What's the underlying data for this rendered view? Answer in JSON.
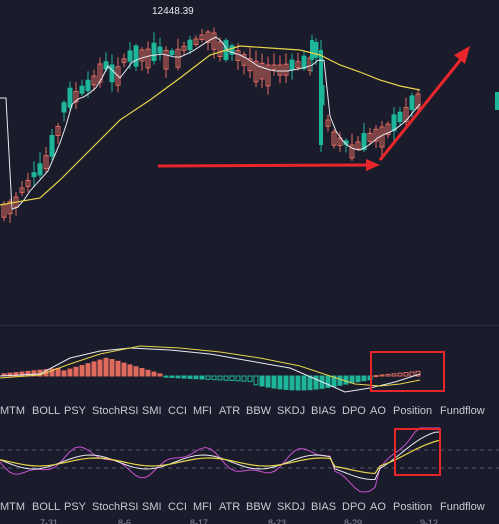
{
  "price_high_label": "12448.39",
  "indicator_tabs": [
    "MTM",
    "BOLL",
    "PSY",
    "StochRSI",
    "SMI",
    "CCI",
    "MFI",
    "ATR",
    "BBW",
    "SKDJ",
    "BIAS",
    "DPO",
    "AO",
    "Position",
    "Fundflow"
  ],
  "date_labels": [
    "7-31",
    "8-6",
    "8-17",
    "8-23",
    "8-29",
    "9-12"
  ],
  "colors": {
    "background": "#1b1c2b",
    "up_candle": "#e06a5e",
    "down_candle": "#1fb59a",
    "ma_fast": "#e9e9f0",
    "ma_slow": "#e6d54a",
    "arrow": "#e8262b",
    "kdj_j": "#c84fcf"
  }
}
